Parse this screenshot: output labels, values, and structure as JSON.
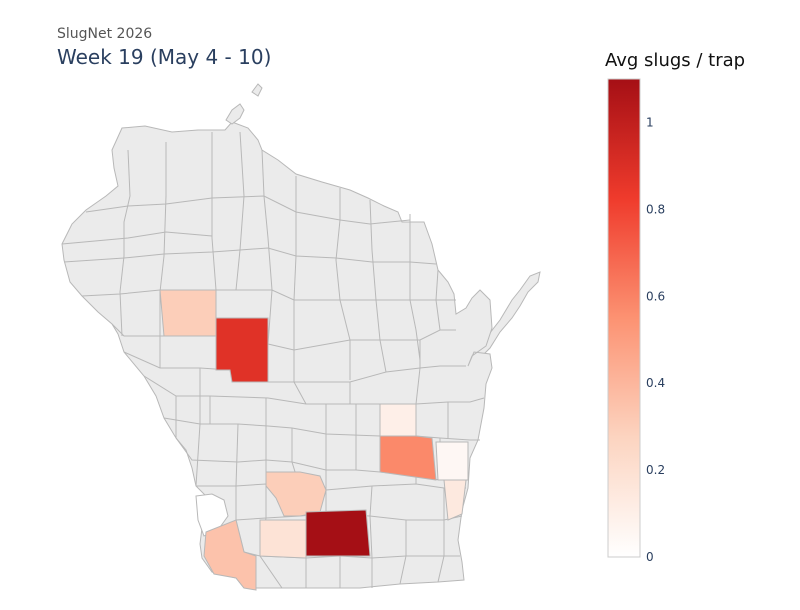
{
  "header": {
    "suptitle": "SlugNet 2026",
    "title": "Week 19 (May 4 - 10)"
  },
  "colorbar": {
    "title": "Avg slugs / trap",
    "range": [
      0,
      1.1
    ],
    "ticks": [
      {
        "value": 0,
        "label": "0"
      },
      {
        "value": 0.2,
        "label": "0.2"
      },
      {
        "value": 0.4,
        "label": "0.4"
      },
      {
        "value": 0.6,
        "label": "0.6"
      },
      {
        "value": 0.8,
        "label": "0.8"
      },
      {
        "value": 1,
        "label": "1"
      }
    ],
    "colorscale": [
      "#ffffff",
      "#fcd4c0",
      "#fc9272",
      "#ef3b2c",
      "#a50f15"
    ]
  },
  "map": {
    "no_data_color": "#ebebeb",
    "border_color": "#b8b8b8",
    "highlighted_counties": [
      {
        "id": "a",
        "value": 0.3
      },
      {
        "id": "b",
        "value": 0.88
      },
      {
        "id": "c",
        "value": 0.1
      },
      {
        "id": "d",
        "value": 0.58
      },
      {
        "id": "e",
        "value": 0.05
      },
      {
        "id": "f",
        "value": 0.3
      },
      {
        "id": "g",
        "value": 0.18
      },
      {
        "id": "h",
        "value": 1.1
      },
      {
        "id": "i",
        "value": 0.14
      },
      {
        "id": "j",
        "value": 0.35
      }
    ]
  }
}
